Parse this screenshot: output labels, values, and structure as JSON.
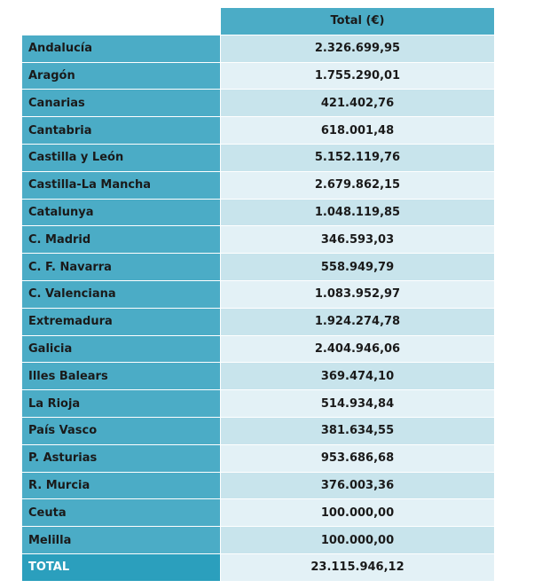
{
  "header": {
    "total_label": "Total (€)"
  },
  "rows": [
    {
      "region": "Andalucía",
      "total": "2.326.699,95"
    },
    {
      "region": "Aragón",
      "total": "1.755.290,01"
    },
    {
      "region": "Canarias",
      "total": "421.402,76"
    },
    {
      "region": "Cantabria",
      "total": "618.001,48"
    },
    {
      "region": "Castilla y León",
      "total": "5.152.119,76"
    },
    {
      "region": "Castilla-La Mancha",
      "total": "2.679.862,15"
    },
    {
      "region": "Catalunya",
      "total": "1.048.119,85"
    },
    {
      "region": "C. Madrid",
      "total": "346.593,03"
    },
    {
      "region": "C. F. Navarra",
      "total": "558.949,79"
    },
    {
      "region": "C. Valenciana",
      "total": "1.083.952,97"
    },
    {
      "region": "Extremadura",
      "total": "1.924.274,78"
    },
    {
      "region": "Galicia",
      "total": "2.404.946,06"
    },
    {
      "region": "Illes Balears",
      "total": "369.474,10"
    },
    {
      "region": "La Rioja",
      "total": "514.934,84"
    },
    {
      "region": "País Vasco",
      "total": "381.634,55"
    },
    {
      "region": "P. Asturias",
      "total": "953.686,68"
    },
    {
      "region": "R. Murcia",
      "total": "376.003,36"
    },
    {
      "region": "Ceuta",
      "total": "100.000,00"
    },
    {
      "region": "Melilla",
      "total": "100.000,00"
    }
  ],
  "total_row": {
    "label": "TOTAL",
    "total": "23.115.946,12"
  },
  "colors": {
    "header_fill": "#4bacc6",
    "band_dark": "#c8e4ec",
    "band_light": "#e3f1f6",
    "total_fill": "#2b9fbd"
  }
}
